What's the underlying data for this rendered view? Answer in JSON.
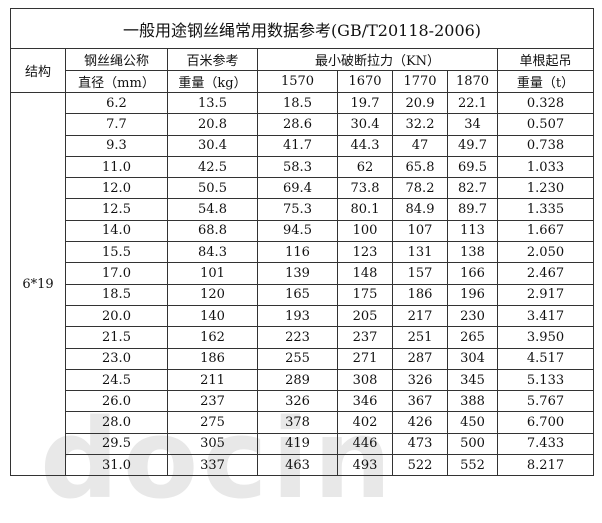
{
  "title": "一般用途钢丝绳常用数据参考(GB/T20118-2006)",
  "headers": {
    "structure": "结构",
    "diameter_l1": "钢丝绳公称",
    "diameter_l2": "直径（mm）",
    "weight_l1": "百米参考",
    "weight_l2": "重量（kg）",
    "breaking": "最小破断拉力（KN）",
    "grades": [
      "1570",
      "1670",
      "1770",
      "1870"
    ],
    "lift_l1": "单根起吊",
    "lift_l2": "重量（t）"
  },
  "structure_value": "6*19",
  "rows": [
    [
      "6.2",
      "13.5",
      "18.5",
      "19.7",
      "20.9",
      "22.1",
      "0.328"
    ],
    [
      "7.7",
      "20.8",
      "28.6",
      "30.4",
      "32.2",
      "34",
      "0.507"
    ],
    [
      "9.3",
      "30.4",
      "41.7",
      "44.3",
      "47",
      "49.7",
      "0.738"
    ],
    [
      "11.0",
      "42.5",
      "58.3",
      "62",
      "65.8",
      "69.5",
      "1.033"
    ],
    [
      "12.0",
      "50.5",
      "69.4",
      "73.8",
      "78.2",
      "82.7",
      "1.230"
    ],
    [
      "12.5",
      "54.8",
      "75.3",
      "80.1",
      "84.9",
      "89.7",
      "1.335"
    ],
    [
      "14.0",
      "68.8",
      "94.5",
      "100",
      "107",
      "113",
      "1.667"
    ],
    [
      "15.5",
      "84.3",
      "116",
      "123",
      "131",
      "138",
      "2.050"
    ],
    [
      "17.0",
      "101",
      "139",
      "148",
      "157",
      "166",
      "2.467"
    ],
    [
      "18.5",
      "120",
      "165",
      "175",
      "186",
      "196",
      "2.917"
    ],
    [
      "20.0",
      "140",
      "193",
      "205",
      "217",
      "230",
      "3.417"
    ],
    [
      "21.5",
      "162",
      "223",
      "237",
      "251",
      "265",
      "3.950"
    ],
    [
      "23.0",
      "186",
      "255",
      "271",
      "287",
      "304",
      "4.517"
    ],
    [
      "24.5",
      "211",
      "289",
      "308",
      "326",
      "345",
      "5.133"
    ],
    [
      "26.0",
      "237",
      "326",
      "346",
      "367",
      "388",
      "5.767"
    ],
    [
      "28.0",
      "275",
      "378",
      "402",
      "426",
      "450",
      "6.700"
    ],
    [
      "29.5",
      "305",
      "419",
      "446",
      "473",
      "500",
      "7.433"
    ],
    [
      "31.0",
      "337",
      "463",
      "493",
      "522",
      "552",
      "8.217"
    ]
  ],
  "watermark": "docin 豆丁"
}
